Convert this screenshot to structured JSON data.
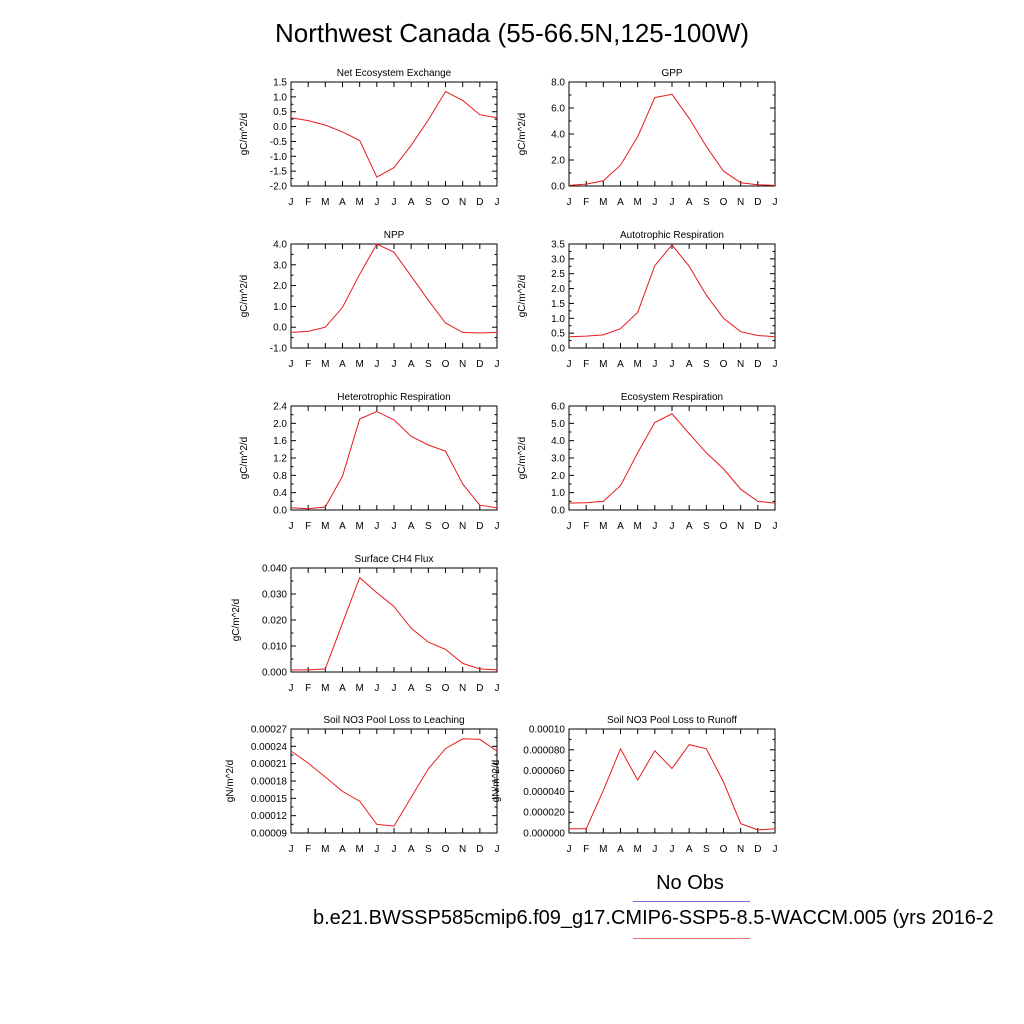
{
  "figure_title": "Northwest Canada (55-66.5N,125-100W)",
  "legend": {
    "obs_label": "No Obs",
    "case_label": "b.e21.BWSSP585cmip6.f09_g17.CMIP6-SSP5-8.5-WACCM.005 (yrs 2016-2",
    "obs_color": "#6f6fe8",
    "model_color": "#f06a6a"
  },
  "chart_data": [
    {
      "type": "line",
      "title": "Net Ecosystem Exchange",
      "ylabel": "gC/m^2/d",
      "categories": [
        "J",
        "F",
        "M",
        "A",
        "M",
        "J",
        "J",
        "A",
        "S",
        "O",
        "N",
        "D",
        "J"
      ],
      "ylim": [
        -2.0,
        1.5
      ],
      "yticks": [
        "1.5",
        "1.0",
        "0.5",
        "0.0",
        "-0.5",
        "-1.0",
        "-1.5",
        "-2.0"
      ],
      "series": [
        {
          "values": [
            0.3,
            0.2,
            0.05,
            -0.18,
            -0.47,
            -1.7,
            -1.38,
            -0.63,
            0.22,
            1.18,
            0.88,
            0.4,
            0.3
          ]
        }
      ]
    },
    {
      "type": "line",
      "title": "GPP",
      "ylabel": "gC/m^2/d",
      "categories": [
        "J",
        "F",
        "M",
        "A",
        "M",
        "J",
        "J",
        "A",
        "S",
        "O",
        "N",
        "D",
        "J"
      ],
      "ylim": [
        0.0,
        8.0
      ],
      "yticks": [
        "8.0",
        "6.0",
        "4.0",
        "2.0",
        "0.0"
      ],
      "series": [
        {
          "values": [
            0.05,
            0.15,
            0.4,
            1.6,
            3.8,
            6.8,
            7.05,
            5.2,
            3.05,
            1.15,
            0.25,
            0.1,
            0.05
          ]
        }
      ]
    },
    {
      "type": "line",
      "title": "NPP",
      "ylabel": "gC/m^2/d",
      "categories": [
        "J",
        "F",
        "M",
        "A",
        "M",
        "J",
        "J",
        "A",
        "S",
        "O",
        "N",
        "D",
        "J"
      ],
      "ylim": [
        -1.0,
        4.0
      ],
      "yticks": [
        "4.0",
        "3.0",
        "2.0",
        "1.0",
        "0.0",
        "-1.0"
      ],
      "series": [
        {
          "values": [
            -0.25,
            -0.2,
            0.0,
            0.95,
            2.55,
            4.0,
            3.6,
            2.45,
            1.3,
            0.2,
            -0.25,
            -0.28,
            -0.25
          ]
        }
      ]
    },
    {
      "type": "line",
      "title": "Autotrophic Respiration",
      "ylabel": "gC/m^2/d",
      "categories": [
        "J",
        "F",
        "M",
        "A",
        "M",
        "J",
        "J",
        "A",
        "S",
        "O",
        "N",
        "D",
        "J"
      ],
      "ylim": [
        0.0,
        3.5
      ],
      "yticks": [
        "3.5",
        "3.0",
        "2.5",
        "2.0",
        "1.5",
        "1.0",
        "0.5",
        "0.0"
      ],
      "series": [
        {
          "values": [
            0.38,
            0.4,
            0.44,
            0.65,
            1.2,
            2.77,
            3.47,
            2.75,
            1.78,
            1.0,
            0.55,
            0.42,
            0.38
          ]
        }
      ]
    },
    {
      "type": "line",
      "title": "Heterotrophic Respiration",
      "ylabel": "gC/m^2/d",
      "categories": [
        "J",
        "F",
        "M",
        "A",
        "M",
        "J",
        "J",
        "A",
        "S",
        "O",
        "N",
        "D",
        "J"
      ],
      "ylim": [
        0.0,
        2.4
      ],
      "yticks": [
        "2.4",
        "2.0",
        "1.6",
        "1.2",
        "0.8",
        "0.4",
        "0.0"
      ],
      "series": [
        {
          "values": [
            0.05,
            0.03,
            0.07,
            0.78,
            2.1,
            2.27,
            2.08,
            1.7,
            1.5,
            1.36,
            0.6,
            0.11,
            0.05
          ]
        }
      ]
    },
    {
      "type": "line",
      "title": "Ecosystem Respiration",
      "ylabel": "gC/m^2/d",
      "categories": [
        "J",
        "F",
        "M",
        "A",
        "M",
        "J",
        "J",
        "A",
        "S",
        "O",
        "N",
        "D",
        "J"
      ],
      "ylim": [
        0.0,
        6.0
      ],
      "yticks": [
        "6.0",
        "5.0",
        "4.0",
        "3.0",
        "2.0",
        "1.0",
        "0.0"
      ],
      "series": [
        {
          "values": [
            0.4,
            0.42,
            0.5,
            1.4,
            3.3,
            5.05,
            5.55,
            4.4,
            3.3,
            2.37,
            1.2,
            0.5,
            0.4
          ]
        }
      ]
    },
    {
      "type": "line",
      "title": "Surface CH4 Flux",
      "ylabel": "gC/m^2/d",
      "categories": [
        "J",
        "F",
        "M",
        "A",
        "M",
        "J",
        "J",
        "A",
        "S",
        "O",
        "N",
        "D",
        "J"
      ],
      "ylim": [
        0.0,
        0.04
      ],
      "yticks": [
        "0.040",
        "0.030",
        "0.020",
        "0.010",
        "0.000"
      ],
      "series": [
        {
          "values": [
            0.0008,
            0.0008,
            0.0012,
            0.0188,
            0.0363,
            0.0305,
            0.0252,
            0.0168,
            0.0115,
            0.0087,
            0.0033,
            0.0012,
            0.0008
          ]
        }
      ]
    },
    {
      "type": "line",
      "title": "Soil NO3 Pool Loss to Leaching",
      "ylabel": "gN/m^2/d",
      "categories": [
        "J",
        "F",
        "M",
        "A",
        "M",
        "J",
        "J",
        "A",
        "S",
        "O",
        "N",
        "D",
        "J"
      ],
      "ylim": [
        9e-05,
        0.00027
      ],
      "yticks": [
        "0.00027",
        "0.00024",
        "0.00021",
        "0.00018",
        "0.00015",
        "0.00012",
        "0.00009"
      ],
      "series": [
        {
          "values": [
            0.000232,
            0.000211,
            0.000187,
            0.000162,
            0.000145,
            0.000105,
            0.000102,
            0.000152,
            0.000201,
            0.000236,
            0.000253,
            0.000252,
            0.000232
          ]
        }
      ]
    },
    {
      "type": "line",
      "title": "Soil NO3 Pool Loss to Runoff",
      "ylabel": "gN/m^2/d",
      "categories": [
        "J",
        "F",
        "M",
        "A",
        "M",
        "J",
        "J",
        "A",
        "S",
        "O",
        "N",
        "D",
        "J"
      ],
      "ylim": [
        0.0,
        0.0001
      ],
      "yticks": [
        "0.00010",
        "0.000080",
        "0.000060",
        "0.000040",
        "0.000020",
        "0.000000"
      ],
      "series": [
        {
          "values": [
            4e-06,
            4e-06,
            4.1e-05,
            8.1e-05,
            5.1e-05,
            7.9e-05,
            6.2e-05,
            8.5e-05,
            8.1e-05,
            4.9e-05,
            9e-06,
            3e-06,
            4e-06
          ]
        }
      ]
    }
  ]
}
